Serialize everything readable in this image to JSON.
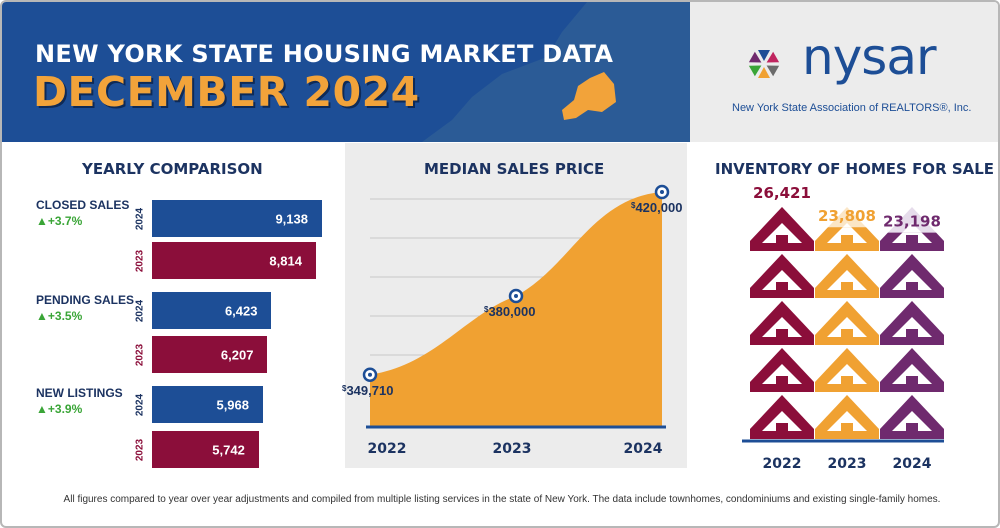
{
  "header": {
    "title_line1": "NEW YORK STATE HOUSING MARKET DATA",
    "title_line2": "DECEMBER 2024"
  },
  "logo": {
    "name": "nysar",
    "subtitle": "New York State Association of REALTORS®, Inc."
  },
  "colors": {
    "navy": "#1d4e96",
    "maroon": "#8b0e3a",
    "orange": "#f0a132",
    "purple": "#6f2a6e",
    "green": "#3aa537",
    "text_dark": "#1c3361"
  },
  "yearly_comparison": {
    "title": "YEARLY COMPARISON",
    "metrics": [
      {
        "name": "CLOSED SALES",
        "change": "+3.7%",
        "years": [
          "2024",
          "2023"
        ],
        "values": [
          9138,
          8814
        ],
        "labels": [
          "9,138",
          "8,814"
        ]
      },
      {
        "name": "PENDING SALES",
        "change": "+3.5%",
        "years": [
          "2024",
          "2023"
        ],
        "values": [
          6423,
          6207
        ],
        "labels": [
          "6,423",
          "6,207"
        ]
      },
      {
        "name": "NEW LISTINGS",
        "change": "+3.9%",
        "years": [
          "2024",
          "2023"
        ],
        "values": [
          5968,
          5742
        ],
        "labels": [
          "5,968",
          "5,742"
        ]
      }
    ]
  },
  "median_sales_price": {
    "title": "MEDIAN SALES PRICE"
  },
  "inventory": {
    "title": "INVENTORY OF HOMES FOR SALE"
  },
  "footnote": "All figures compared to year over year adjustments and compiled from multiple listing services in the state of New York.  The data include townhomes, condominiums and existing single-family homes.",
  "chart_data": [
    {
      "type": "bar",
      "title": "YEARLY COMPARISON",
      "categories": [
        "CLOSED SALES",
        "PENDING SALES",
        "NEW LISTINGS"
      ],
      "series": [
        {
          "name": "2024",
          "values": [
            9138,
            6423,
            5968
          ]
        },
        {
          "name": "2023",
          "values": [
            8814,
            6207,
            5742
          ]
        }
      ],
      "changes": [
        "+3.7%",
        "+3.5%",
        "+3.9%"
      ]
    },
    {
      "type": "area",
      "title": "MEDIAN SALES PRICE",
      "x": [
        "2022",
        "2023",
        "2024"
      ],
      "values": [
        349710,
        380000,
        420000
      ],
      "labels": [
        "349,710",
        "380,000",
        "420,000"
      ],
      "currency_symbol": "$",
      "ylim": [
        330000,
        420000
      ]
    },
    {
      "type": "bar",
      "title": "INVENTORY OF HOMES FOR SALE",
      "categories": [
        "2022",
        "2023",
        "2024"
      ],
      "values": [
        26421,
        23808,
        23198
      ],
      "labels": [
        "26,421",
        "23,808",
        "23,198"
      ],
      "ylim": [
        0,
        26421
      ]
    }
  ]
}
